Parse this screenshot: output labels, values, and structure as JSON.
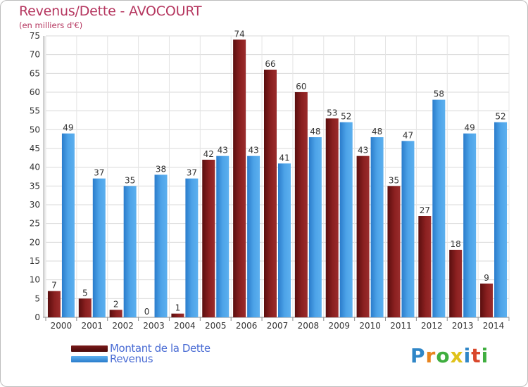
{
  "header": {
    "title": "Revenus/Dette - AVOCOURT",
    "subtitle": "(en milliers d'€)"
  },
  "colors": {
    "dette": "#8b2020",
    "dette_dark": "#5a0e0e",
    "revenus": "#4da3e8",
    "revenus_dark": "#2a7ccb",
    "title": "#b5365f",
    "legend_text": "#4a6cd4"
  },
  "legend": {
    "dette_label": "Montant de la Dette",
    "revenus_label": "Revenus"
  },
  "logo": {
    "text": "Proxiti",
    "letters": [
      "P",
      "r",
      "o",
      "x",
      "i",
      "t",
      "i"
    ],
    "letter_colors": [
      "#2f86c7",
      "#e8841e",
      "#3fae3f",
      "#e0c21a",
      "#2f86c7",
      "#d9472b",
      "#3fae3f"
    ]
  },
  "chart_data": {
    "type": "bar",
    "title": "Revenus/Dette - AVOCOURT",
    "ylabel": "(en milliers d'€)",
    "xlabel": "",
    "ylim": [
      0,
      75
    ],
    "yticks": [
      0,
      5,
      10,
      15,
      20,
      25,
      30,
      35,
      40,
      45,
      50,
      55,
      60,
      65,
      70,
      75
    ],
    "grid": true,
    "legend_position": "bottom-left",
    "categories": [
      "2000",
      "2001",
      "2002",
      "2003",
      "2004",
      "2005",
      "2006",
      "2007",
      "2008",
      "2009",
      "2010",
      "2011",
      "2012",
      "2013",
      "2014"
    ],
    "series": [
      {
        "name": "Montant de la Dette",
        "color": "#8b2020",
        "values": [
          7,
          5,
          2,
          0,
          1,
          42,
          74,
          66,
          60,
          53,
          43,
          35,
          27,
          18,
          9
        ]
      },
      {
        "name": "Revenus",
        "color": "#4da3e8",
        "values": [
          49,
          37,
          35,
          38,
          37,
          43,
          43,
          41,
          48,
          52,
          48,
          47,
          58,
          49,
          52
        ]
      }
    ]
  }
}
